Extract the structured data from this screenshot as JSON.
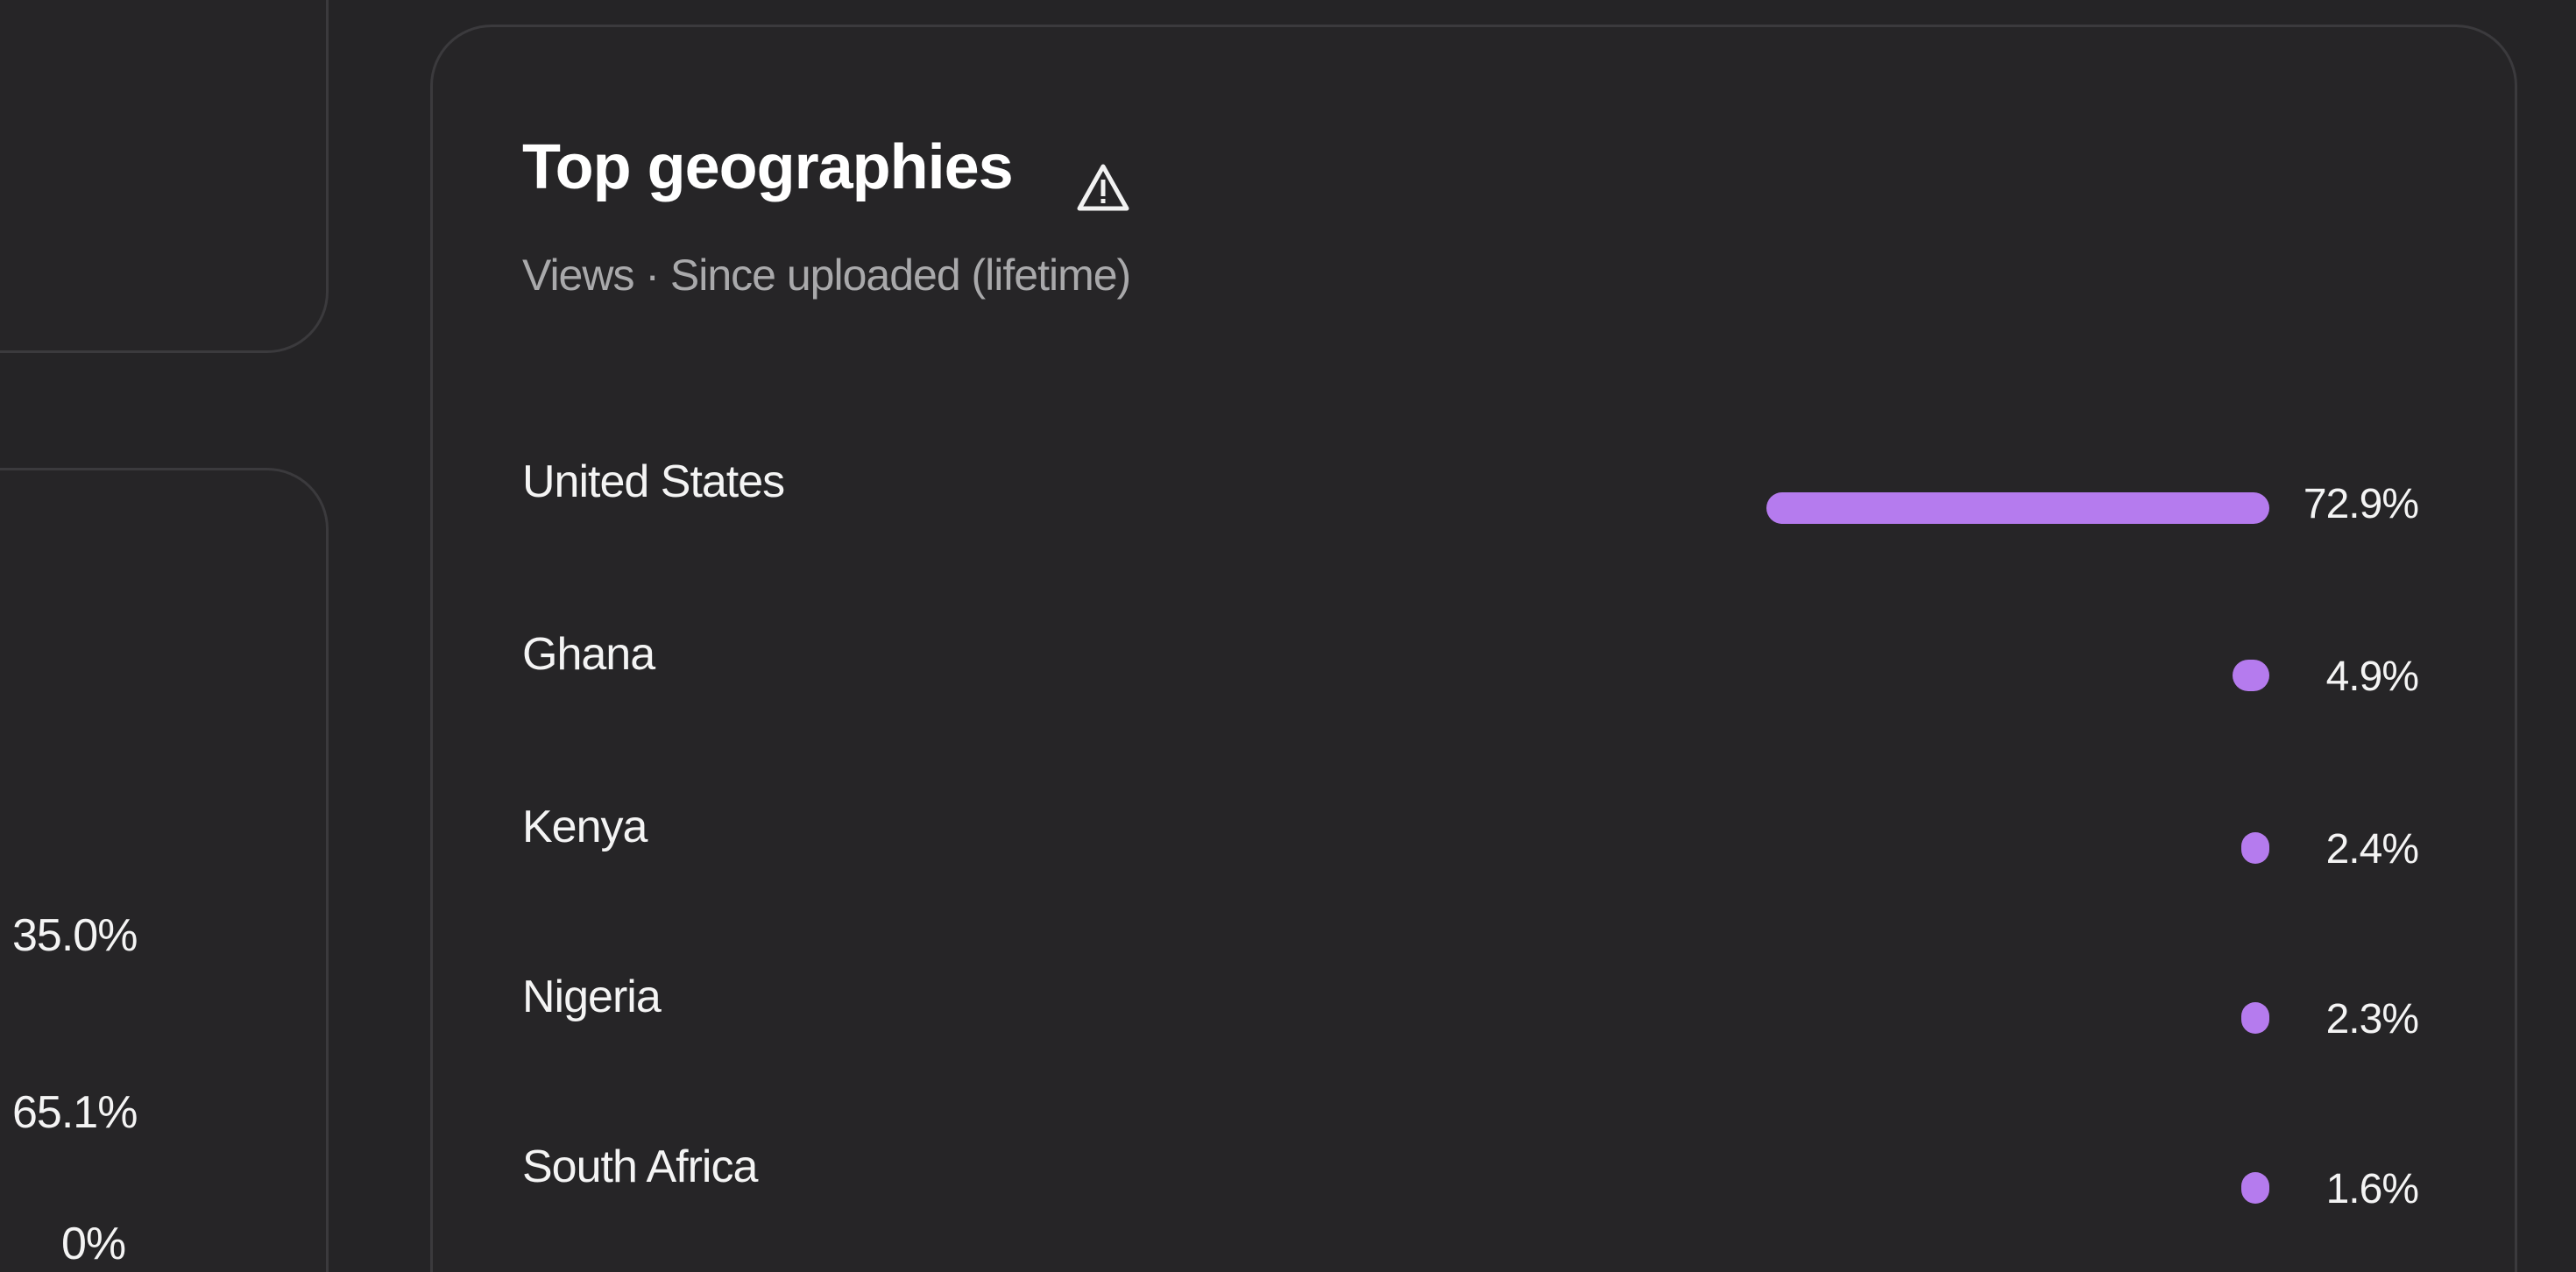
{
  "left_panel": {
    "values": [
      "35.0%",
      "65.1%",
      "0%"
    ]
  },
  "geographies": {
    "title": "Top geographies",
    "title_icon": "warning-triangle-icon",
    "subtitle": "Views · Since uploaded (lifetime)",
    "accent_color": "#b57bee",
    "rows": [
      {
        "country": "United States",
        "value": 72.9,
        "label": "72.9%"
      },
      {
        "country": "Ghana",
        "value": 4.9,
        "label": "4.9%"
      },
      {
        "country": "Kenya",
        "value": 2.4,
        "label": "2.4%"
      },
      {
        "country": "Nigeria",
        "value": 2.3,
        "label": "2.3%"
      },
      {
        "country": "South Africa",
        "value": 1.6,
        "label": "1.6%"
      }
    ]
  }
}
